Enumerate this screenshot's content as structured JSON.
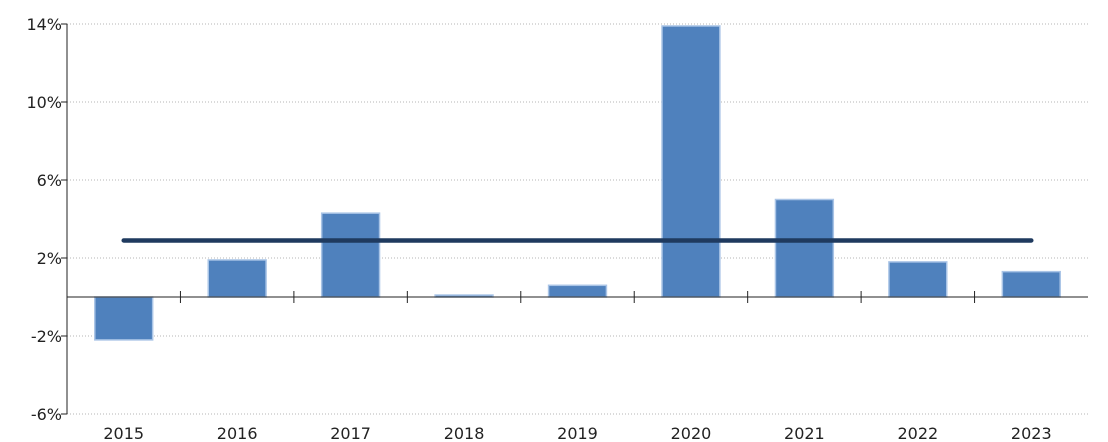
{
  "chart_data": {
    "type": "bar",
    "categories": [
      "2015",
      "2016",
      "2017",
      "2018",
      "2019",
      "2020",
      "2021",
      "2022",
      "2023"
    ],
    "series": [
      {
        "type": "bar",
        "values": [
          -2.2,
          1.9,
          4.3,
          0.1,
          0.6,
          13.9,
          5.0,
          1.8,
          1.3
        ],
        "color": "#4f81bd"
      },
      {
        "type": "line",
        "values": [
          2.9,
          2.9,
          2.9,
          2.9,
          2.9,
          2.9,
          2.9,
          2.9,
          2.9
        ],
        "color": "#1f3a5f"
      }
    ],
    "title": "",
    "xlabel": "",
    "ylabel": "",
    "ylim": [
      -6,
      14
    ],
    "y_ticks": [
      14,
      10,
      6,
      2,
      -2,
      -6
    ],
    "y_tick_labels": [
      "14%",
      "10%",
      "6%",
      "2%",
      "-2%",
      "-6%"
    ],
    "grid": true,
    "legend": "none"
  }
}
